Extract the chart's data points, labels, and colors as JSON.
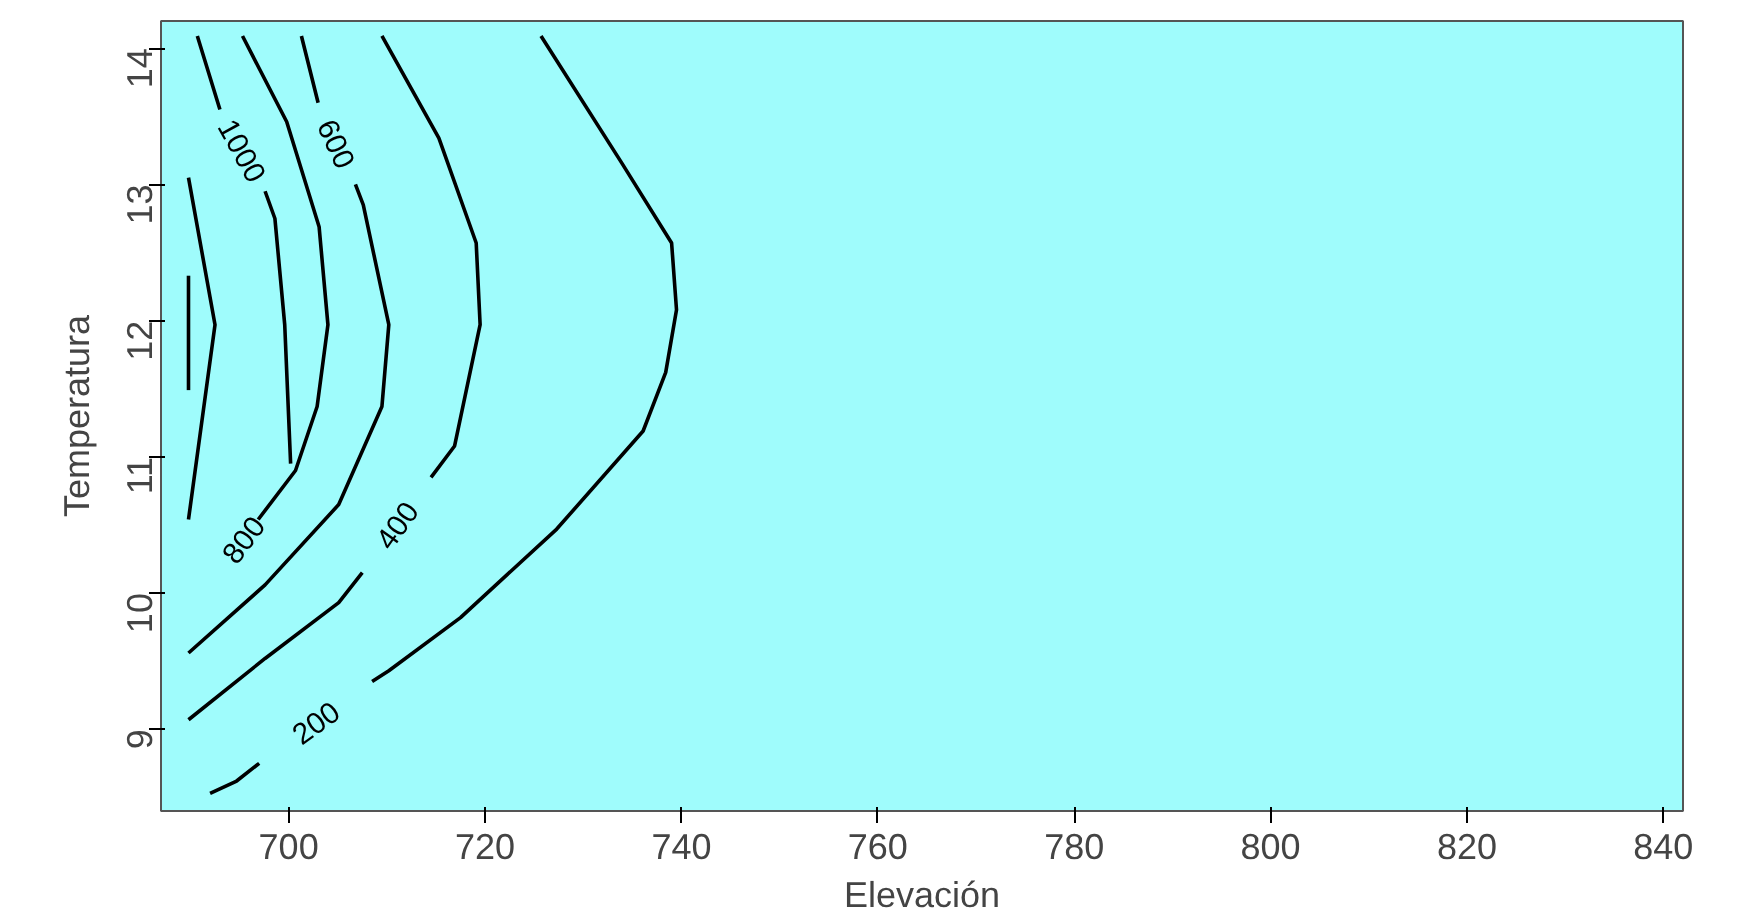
{
  "chart_data": {
    "type": "line",
    "xlabel": "Elevación",
    "ylabel": "Temperatura",
    "xlim": [
      687,
      842
    ],
    "ylim": [
      8.4,
      14.2
    ],
    "xticks": [
      700,
      720,
      740,
      760,
      780,
      800,
      820,
      840
    ],
    "yticks": [
      9,
      10,
      11,
      12,
      13,
      14
    ],
    "grid": false,
    "line_style": "solid",
    "series": [
      {
        "name": "200",
        "color": "#000000",
        "x": [
          725.7,
          733.9,
          739.0,
          739.5,
          738.4,
          736.1,
          727.3,
          717.5,
          710.2,
          708.5,
          702.5,
          697.0,
          694.7,
          692.0
        ],
        "values": [
          14.09,
          13.16,
          12.57,
          12.08,
          11.62,
          11.19,
          10.47,
          9.82,
          9.43,
          9.35,
          null,
          8.75,
          8.62,
          8.53
        ]
      },
      {
        "name": "400",
        "color": "#000000",
        "x": [
          709.5,
          715.3,
          719.1,
          719.5,
          716.9,
          714.5,
          711.0,
          707.5,
          705.1,
          697.6,
          689.8
        ],
        "values": [
          14.09,
          13.34,
          12.57,
          11.97,
          11.08,
          10.85,
          null,
          10.15,
          9.93,
          9.52,
          9.07
        ]
      },
      {
        "name": "600",
        "color": "#000000",
        "x": [
          701.3,
          703.0,
          705.2,
          706.8,
          707.6,
          710.2,
          709.5,
          705.1,
          697.6,
          689.8
        ],
        "values": [
          14.09,
          13.6,
          null,
          13.0,
          12.85,
          11.97,
          11.37,
          10.65,
          10.06,
          9.56
        ]
      },
      {
        "name": "800",
        "color": "#000000",
        "x": [
          695.3,
          699.8,
          703.1,
          704.0,
          702.9,
          700.7,
          696.9
        ],
        "values": [
          14.09,
          13.46,
          12.69,
          11.97,
          11.37,
          10.9,
          10.54
        ]
      },
      {
        "name": "1000",
        "color": "#000000",
        "x": [
          690.7,
          693.0,
          695.2,
          697.6,
          698.6,
          699.6,
          700.2
        ],
        "values": [
          14.09,
          13.55,
          null,
          12.95,
          12.75,
          11.97,
          10.95
        ]
      },
      {
        "color": "#000000",
        "x": [
          689.8,
          692.5,
          689.8
        ],
        "values": [
          13.05,
          11.97,
          10.54
        ]
      },
      {
        "color": "#000000",
        "x": [
          689.8,
          689.8
        ],
        "values": [
          12.33,
          11.49
        ]
      }
    ]
  }
}
